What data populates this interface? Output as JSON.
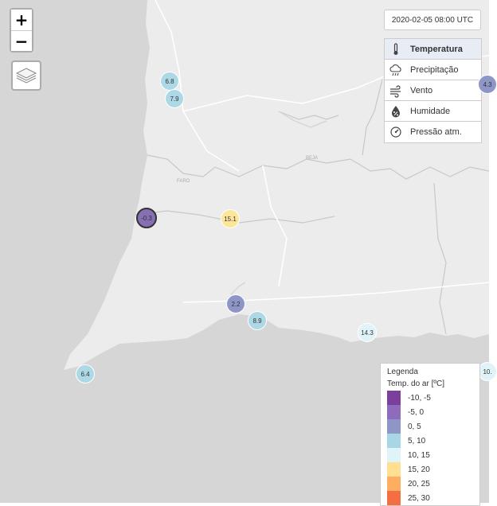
{
  "map": {
    "timestamp": "2020-02-05 08:00 UTC",
    "place_labels": [
      {
        "text": "FARO"
      },
      {
        "text": "BEJA"
      }
    ]
  },
  "controls": {
    "zoom_in": "+",
    "zoom_out": "−",
    "layers_icon": "layers-icon"
  },
  "variables": [
    {
      "label": "Temperatura",
      "icon": "thermometer-icon",
      "active": true
    },
    {
      "label": "Precipitação",
      "icon": "rain-cloud-icon",
      "active": false
    },
    {
      "label": "Vento",
      "icon": "wind-icon",
      "active": false
    },
    {
      "label": "Humidade",
      "icon": "humidity-icon",
      "active": false
    },
    {
      "label": "Pressão atm.",
      "icon": "gauge-icon",
      "active": false
    }
  ],
  "stations": [
    {
      "value": "6.8",
      "color": "#add8e6"
    },
    {
      "value": "7.9",
      "color": "#add8e6"
    },
    {
      "value": "4.3",
      "color": "#8e96c8"
    },
    {
      "value": "-0.3",
      "color": "#8670b3",
      "selected": true
    },
    {
      "value": "15.1",
      "color": "#fde59a"
    },
    {
      "value": "2.2",
      "color": "#8e96c8"
    },
    {
      "value": "8.9",
      "color": "#add8e6"
    },
    {
      "value": "14.3",
      "color": "#e0f3f8"
    },
    {
      "value": "6.4",
      "color": "#add8e6"
    },
    {
      "value": "10.",
      "color": "#e0f3f8"
    }
  ],
  "legend": {
    "title": "Legenda",
    "subtitle": "Temp. do ar [ºC]",
    "items": [
      {
        "label": "-10, -5",
        "color": "#7b3f9e"
      },
      {
        "label": "-5, 0",
        "color": "#8e6bbd"
      },
      {
        "label": "0, 5",
        "color": "#8e96c8"
      },
      {
        "label": "5, 10",
        "color": "#a9d6e5"
      },
      {
        "label": "10, 15",
        "color": "#e0f3f8"
      },
      {
        "label": "15, 20",
        "color": "#fee090"
      },
      {
        "label": "20, 25",
        "color": "#fdae61"
      },
      {
        "label": "25, 30",
        "color": "#f46d43"
      }
    ]
  }
}
